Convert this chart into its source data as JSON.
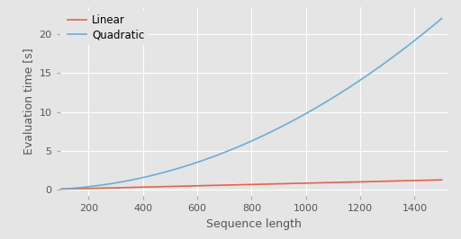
{
  "title": "",
  "xlabel": "Sequence length",
  "ylabel": "Evaluation time [s]",
  "x_start": 100,
  "x_end": 1500,
  "x_ticks": [
    200,
    400,
    600,
    800,
    1000,
    1200,
    1400
  ],
  "y_ticks": [
    0,
    5,
    10,
    15,
    20
  ],
  "ylim": [
    -0.8,
    23.5
  ],
  "xlim": [
    95,
    1520
  ],
  "linear_color": "#e8604c",
  "quadratic_color": "#6aaed6",
  "linear_label": "Linear",
  "quadratic_label": "Quadratic",
  "background_color": "#e5e5e5",
  "grid_color": "white",
  "linear_scale": 0.00085,
  "quadratic_scale": 9.8e-06,
  "legend_fontsize": 8.5,
  "axis_fontsize": 9,
  "tick_fontsize": 8
}
